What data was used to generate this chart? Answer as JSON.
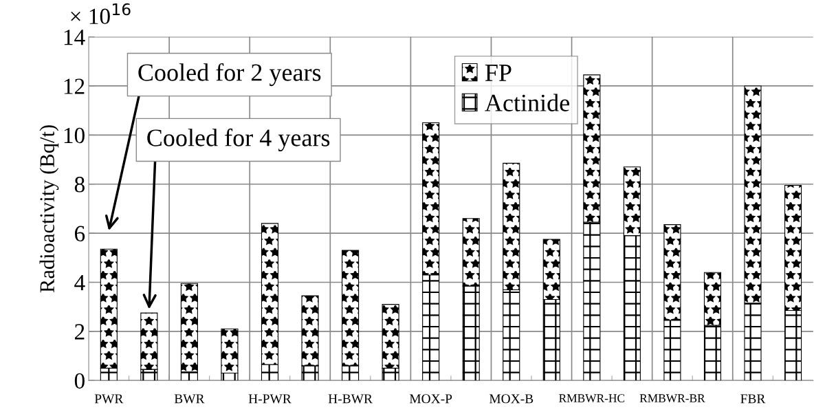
{
  "chart_data": {
    "type": "bar",
    "stacked": true,
    "categories": [
      "PWR",
      null,
      "BWR",
      null,
      "H-PWR",
      null,
      "H-BWR",
      null,
      "MOX-P",
      null,
      "MOX-B",
      null,
      "RMBWR-HC",
      null,
      "RMBWR-BR",
      null,
      "FBR",
      null
    ],
    "series": [
      {
        "name": "Actinide",
        "color": "#000000",
        "values": [
          0.5,
          0.45,
          0.35,
          0.3,
          0.65,
          0.6,
          0.6,
          0.5,
          4.3,
          3.85,
          3.7,
          3.3,
          6.45,
          5.9,
          2.45,
          2.25,
          3.15,
          2.85
        ]
      },
      {
        "name": "FP",
        "color": "#000000",
        "values": [
          4.85,
          2.3,
          3.6,
          1.8,
          5.75,
          2.85,
          4.7,
          2.6,
          6.2,
          2.75,
          5.15,
          2.45,
          6.0,
          2.8,
          3.9,
          2.15,
          8.85,
          5.1
        ]
      }
    ],
    "ylabel": "Radioactivity (Bq/t)",
    "ylim": [
      0,
      14
    ],
    "yticks": [
      0,
      2,
      4,
      6,
      8,
      10,
      12,
      14
    ],
    "annotations": [
      "Cooled for 2 years",
      "Cooled for 4 years",
      "× 10$^{16}$"
    ],
    "grid": true,
    "legend": "top center"
  }
}
